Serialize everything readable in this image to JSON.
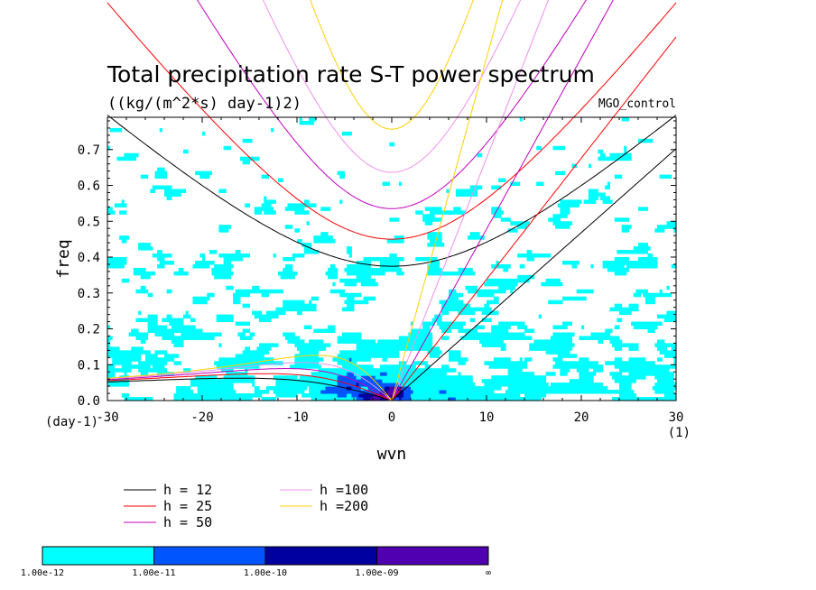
{
  "chart_data": {
    "type": "heatmap",
    "title": "Total precipitation rate S-T power spectrum",
    "subtitle": "((kg/(m^2*s) day-1)2)",
    "label_right": "MGO_control",
    "xlabel": "wvn",
    "ylabel": "freq",
    "x_unit_label": "(1)",
    "y_unit_label": "(day-1)",
    "xlim": [
      -30,
      30
    ],
    "ylim": [
      0,
      0.79
    ],
    "x_ticks": [
      -30,
      -20,
      -10,
      0,
      10,
      20,
      30
    ],
    "y_ticks": [
      0.0,
      0.1,
      0.2,
      0.3,
      0.4,
      0.5,
      0.6,
      0.7
    ],
    "x_tick_labels": [
      "-30",
      "-20",
      "-10",
      "0",
      "10",
      "20",
      "30"
    ],
    "y_tick_labels": [
      "0.0",
      "0.1",
      "0.2",
      "0.3",
      "0.4",
      "0.5",
      "0.6",
      "0.7"
    ],
    "colorbar": {
      "levels": [
        "1.00e-12",
        "1.00e-11",
        "1.00e-10",
        "1.00e-09",
        "∞"
      ],
      "colors": [
        "#00ffff",
        "#0055ff",
        "#0000a0",
        "#5000b0"
      ]
    },
    "dispersion_curves": {
      "legend": [
        {
          "label": "h = 12",
          "color": "#000000"
        },
        {
          "label": "h = 25",
          "color": "#ff0000"
        },
        {
          "label": "h = 50",
          "color": "#c000c0"
        },
        {
          "label": "h =100",
          "color": "#ee90ee"
        },
        {
          "label": "h =200",
          "color": "#ffd000"
        }
      ],
      "equivalent_depths": [
        12,
        25,
        50,
        100,
        200
      ]
    }
  }
}
